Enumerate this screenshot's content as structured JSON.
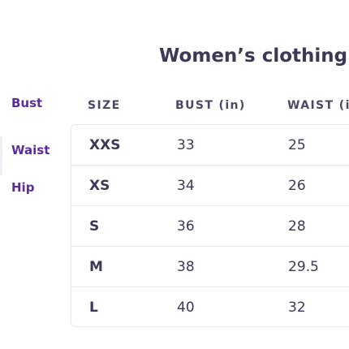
{
  "sidebar": {
    "items": [
      {
        "label": "Bust"
      },
      {
        "label": "Waist"
      },
      {
        "label": "Hip"
      }
    ]
  },
  "title": "Women’s clothing siz",
  "table": {
    "headers": {
      "size": "SIZE",
      "bust": "BUST (in)",
      "waist": "WAIST (i"
    },
    "rows": [
      {
        "size": "XXS",
        "bust": "33",
        "waist": "25"
      },
      {
        "size": "XS",
        "bust": "34",
        "waist": "26"
      },
      {
        "size": "S",
        "bust": "36",
        "waist": "28"
      },
      {
        "size": "M",
        "bust": "38",
        "waist": "29.5"
      },
      {
        "size": "L",
        "bust": "40",
        "waist": "32"
      }
    ]
  },
  "colors": {
    "accent": "#5a2ca0",
    "text": "#3b3a56",
    "border": "#e7e8ef"
  }
}
